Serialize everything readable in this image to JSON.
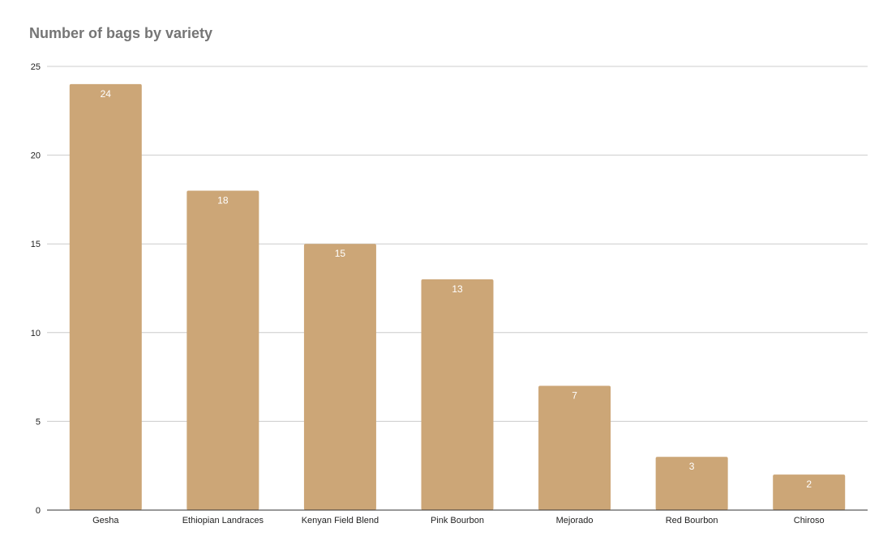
{
  "chart_data": {
    "type": "bar",
    "title": "Number of bags by variety",
    "xlabel": "",
    "ylabel": "",
    "categories": [
      "Gesha",
      "Ethiopian Landraces",
      "Kenyan Field Blend",
      "Pink Bourbon",
      "Mejorado",
      "Red Bourbon",
      "Chiroso"
    ],
    "values": [
      24,
      18,
      15,
      13,
      7,
      3,
      2
    ],
    "ylim": [
      0,
      25
    ],
    "yticks": [
      0,
      5,
      10,
      15,
      20,
      25
    ],
    "grid": true,
    "legend": "none",
    "data_labels": true,
    "colors": {
      "bar": "#cca677",
      "grid": "#cccccc",
      "axis": "#333333",
      "title": "#757575",
      "data_label": "#ffffff"
    }
  }
}
